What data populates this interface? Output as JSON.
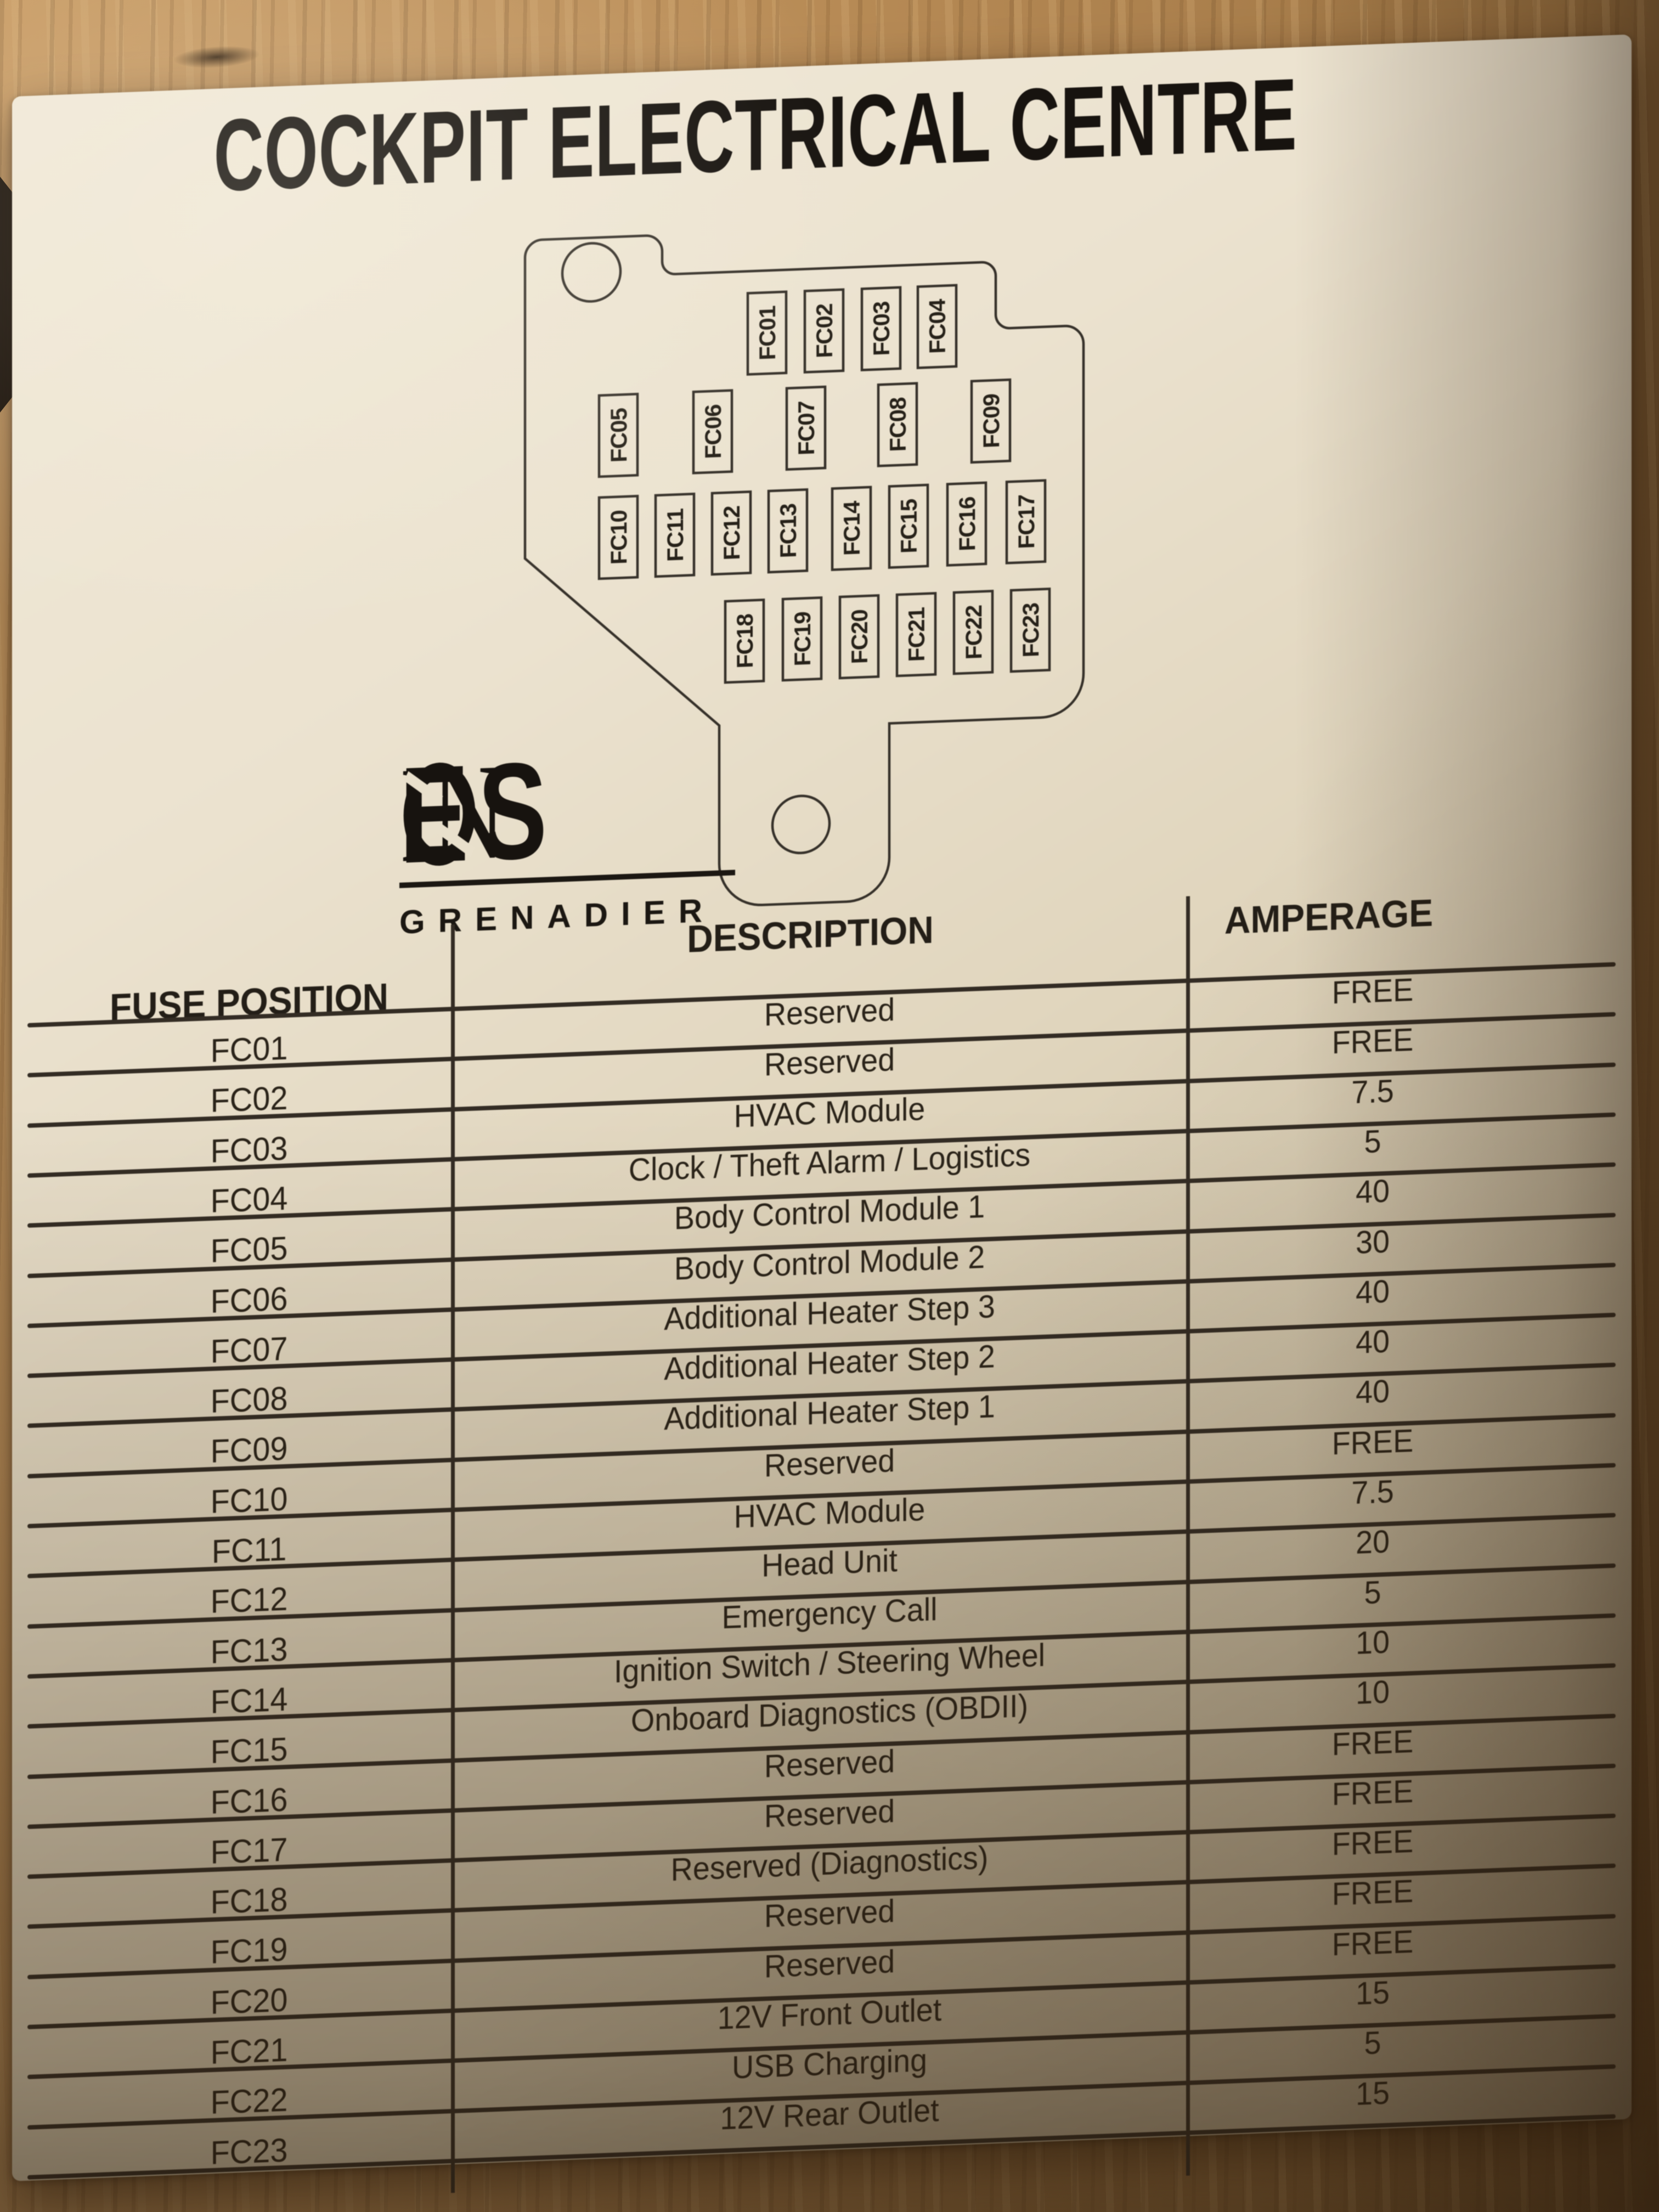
{
  "title": "COCKPIT ELECTRICAL CENTRE",
  "logo": {
    "in": "IN",
    "e": "E",
    "s": "S",
    "sub": "GRENADIER"
  },
  "diagram": {
    "fuses": [
      "FC01",
      "FC02",
      "FC03",
      "FC04",
      "FC05",
      "FC06",
      "FC07",
      "FC08",
      "FC09",
      "FC10",
      "FC11",
      "FC12",
      "FC13",
      "FC14",
      "FC15",
      "FC16",
      "FC17",
      "FC18",
      "FC19",
      "FC20",
      "FC21",
      "FC22",
      "FC23"
    ]
  },
  "table": {
    "headers": {
      "position": "FUSE POSITION",
      "description": "DESCRIPTION",
      "amperage": "AMPERAGE"
    },
    "rows": [
      {
        "position": "FC01",
        "description": "Reserved",
        "amperage": "FREE"
      },
      {
        "position": "FC02",
        "description": "Reserved",
        "amperage": "FREE"
      },
      {
        "position": "FC03",
        "description": "HVAC Module",
        "amperage": "7.5"
      },
      {
        "position": "FC04",
        "description": "Clock / Theft Alarm / Logistics",
        "amperage": "5"
      },
      {
        "position": "FC05",
        "description": "Body Control Module 1",
        "amperage": "40"
      },
      {
        "position": "FC06",
        "description": "Body Control Module 2",
        "amperage": "30"
      },
      {
        "position": "FC07",
        "description": "Additional Heater Step 3",
        "amperage": "40"
      },
      {
        "position": "FC08",
        "description": "Additional Heater Step 2",
        "amperage": "40"
      },
      {
        "position": "FC09",
        "description": "Additional Heater Step 1",
        "amperage": "40"
      },
      {
        "position": "FC10",
        "description": "Reserved",
        "amperage": "FREE"
      },
      {
        "position": "FC11",
        "description": "HVAC Module",
        "amperage": "7.5"
      },
      {
        "position": "FC12",
        "description": "Head Unit",
        "amperage": "20"
      },
      {
        "position": "FC13",
        "description": "Emergency Call",
        "amperage": "5"
      },
      {
        "position": "FC14",
        "description": "Ignition Switch / Steering Wheel",
        "amperage": "10"
      },
      {
        "position": "FC15",
        "description": "Onboard Diagnostics (OBDII)",
        "amperage": "10"
      },
      {
        "position": "FC16",
        "description": "Reserved",
        "amperage": "FREE"
      },
      {
        "position": "FC17",
        "description": "Reserved",
        "amperage": "FREE"
      },
      {
        "position": "FC18",
        "description": "Reserved (Diagnostics)",
        "amperage": "FREE"
      },
      {
        "position": "FC19",
        "description": "Reserved",
        "amperage": "FREE"
      },
      {
        "position": "FC20",
        "description": "Reserved",
        "amperage": "FREE"
      },
      {
        "position": "FC21",
        "description": "12V Front Outlet",
        "amperage": "15"
      },
      {
        "position": "FC22",
        "description": "USB Charging",
        "amperage": "5"
      },
      {
        "position": "FC23",
        "description": "12V Rear Outlet",
        "amperage": "15"
      }
    ]
  },
  "colors": {
    "ink": "#231e17",
    "card": "#e9e0cc",
    "wood": "#b6895a"
  }
}
